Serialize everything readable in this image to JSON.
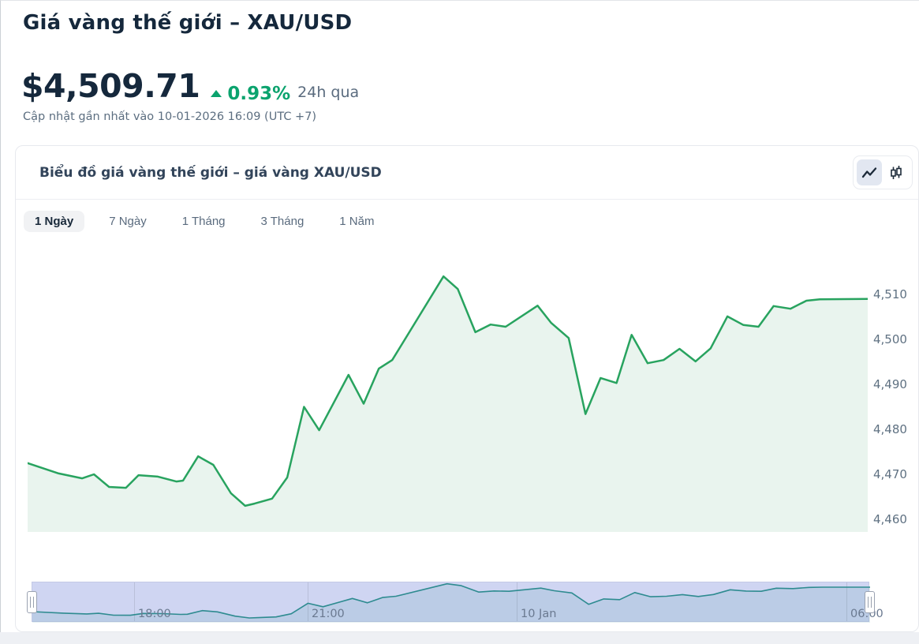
{
  "header": {
    "title": "Giá vàng thế giới – XAU/USD",
    "price": "$4,509.71",
    "change_percent": "0.93%",
    "change_direction": "up",
    "change_period": "24h qua",
    "updated": "Cập nhật gần nhất vào 10-01-2026 16:09 (UTC +7)"
  },
  "panel": {
    "title": "Biểu đồ giá vàng thế giới – giá vàng XAU/USD",
    "chart_type_toggle": [
      {
        "name": "line-chart-icon",
        "active": true
      },
      {
        "name": "candlestick-icon",
        "active": false
      }
    ],
    "tabs": [
      {
        "label": "1 Ngày",
        "active": true
      },
      {
        "label": "7 Ngày",
        "active": false
      },
      {
        "label": "1 Tháng",
        "active": false
      },
      {
        "label": "3 Tháng",
        "active": false
      },
      {
        "label": "1 Năm",
        "active": false
      }
    ]
  },
  "colors": {
    "navy": "#15283c",
    "accent_green": "#0ba36e",
    "line_green": "#28a35f",
    "area_green": "#e9f4ee",
    "gray_text": "#5c6e80",
    "nav_fill": "#cfd5f2",
    "nav_line": "#2e8b90",
    "nav_under_fill": "rgba(46,139,144,0.12)"
  },
  "chart_data": {
    "type": "area",
    "title": "Biểu đồ giá vàng thế giới – giá vàng XAU/USD",
    "series_name": "XAU/USD",
    "unit": "USD",
    "legend": false,
    "grid": false,
    "y_axis": {
      "position": "right",
      "range": [
        4457,
        4516
      ],
      "ticks": [
        4460,
        4470,
        4480,
        4490,
        4500,
        4510
      ]
    },
    "x_axis": {
      "labels": [
        {
          "label": "18:00",
          "pos": 0.121
        },
        {
          "label": "21:00",
          "pos": 0.329
        },
        {
          "label": "10 Jan",
          "pos": 0.578
        },
        {
          "label": "06:00",
          "pos": 0.972
        }
      ]
    },
    "navigator": {
      "present": true,
      "full_range_selected": true
    },
    "points": [
      [
        0.0,
        4472.5
      ],
      [
        0.037,
        4470.2
      ],
      [
        0.065,
        4469.1
      ],
      [
        0.079,
        4470.0
      ],
      [
        0.097,
        4467.2
      ],
      [
        0.117,
        4467.0
      ],
      [
        0.132,
        4469.8
      ],
      [
        0.155,
        4469.5
      ],
      [
        0.177,
        4468.4
      ],
      [
        0.185,
        4468.6
      ],
      [
        0.203,
        4474.0
      ],
      [
        0.221,
        4472.1
      ],
      [
        0.242,
        4465.8
      ],
      [
        0.259,
        4463.0
      ],
      [
        0.27,
        4463.5
      ],
      [
        0.291,
        4464.6
      ],
      [
        0.309,
        4469.3
      ],
      [
        0.329,
        4485.0
      ],
      [
        0.347,
        4479.8
      ],
      [
        0.382,
        4492.1
      ],
      [
        0.4,
        4485.7
      ],
      [
        0.418,
        4493.5
      ],
      [
        0.434,
        4495.4
      ],
      [
        0.495,
        4514.0
      ],
      [
        0.512,
        4511.2
      ],
      [
        0.533,
        4501.6
      ],
      [
        0.551,
        4503.3
      ],
      [
        0.569,
        4502.8
      ],
      [
        0.607,
        4507.5
      ],
      [
        0.623,
        4503.7
      ],
      [
        0.644,
        4500.3
      ],
      [
        0.664,
        4483.4
      ],
      [
        0.682,
        4491.4
      ],
      [
        0.701,
        4490.3
      ],
      [
        0.719,
        4501.0
      ],
      [
        0.738,
        4494.7
      ],
      [
        0.757,
        4495.4
      ],
      [
        0.776,
        4497.9
      ],
      [
        0.795,
        4495.1
      ],
      [
        0.813,
        4498.0
      ],
      [
        0.833,
        4505.1
      ],
      [
        0.852,
        4503.2
      ],
      [
        0.87,
        4502.8
      ],
      [
        0.888,
        4507.4
      ],
      [
        0.908,
        4506.8
      ],
      [
        0.927,
        4508.6
      ],
      [
        0.943,
        4508.9
      ],
      [
        1.0,
        4509.0
      ]
    ]
  }
}
